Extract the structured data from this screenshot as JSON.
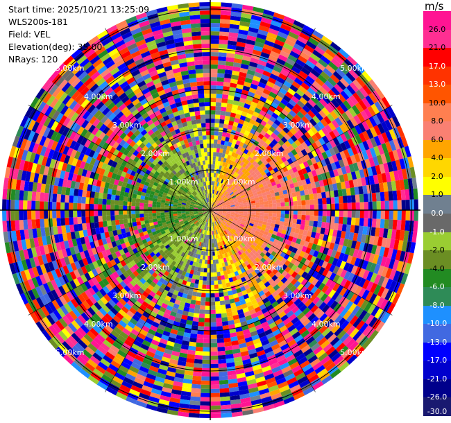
{
  "info": {
    "start_time": "Start time: 2025/10/21 13:25:09",
    "instrument": "WLS200s-181",
    "field": "Field: VEL",
    "elevation": "Elevation(deg): 35.00",
    "nrays": "NRays: 120"
  },
  "colorbar": {
    "unit": "m/s",
    "ticks": [
      "26.0",
      "21.0",
      "17.0",
      "13.0",
      "10.0",
      "8.0",
      "6.0",
      "4.0",
      "2.0",
      "1.0",
      "0.0",
      "-1.0",
      "-2.0",
      "-4.0",
      "-6.0",
      "-8.0",
      "-10.0",
      "-13.0",
      "-17.0",
      "-21.0",
      "-26.0",
      "-30.0"
    ],
    "colors": [
      "#ff1493",
      "#ff2f92",
      "#ff0000",
      "#ff3300",
      "#ff5500",
      "#ff7f50",
      "#fa8072",
      "#ffa500",
      "#ffd700",
      "#ffff00",
      "#708090",
      "#696969",
      "#9acd32",
      "#6b8e23",
      "#228b22",
      "#2e8b57",
      "#1e90ff",
      "#4169e1",
      "#0000ff",
      "#0000cd",
      "#00008b",
      "#191970"
    ]
  },
  "chart_data": {
    "type": "heatmap",
    "projection": "polar (PPI)",
    "field": "VEL",
    "units": "m/s",
    "nrays": 120,
    "range_rings_km": [
      "1.00km",
      "2.00km",
      "3.00km",
      "4.00km",
      "5.00km"
    ],
    "vmin": -30.0,
    "vmax": 26.0,
    "pattern": "near-field: negative (blue/green) to the west, positive (orange/red) to the east; far-field noisy"
  }
}
